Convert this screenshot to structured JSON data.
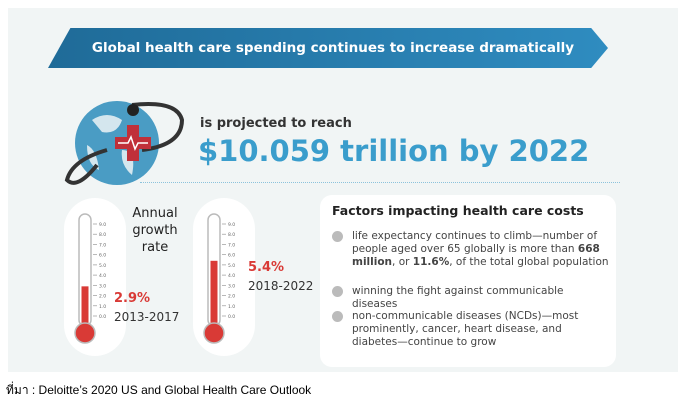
{
  "banner": {
    "title": "Global health care spending continues to increase dramatically"
  },
  "headline": {
    "sub": "is projected to reach",
    "value": "$10.059 trillion by 2022"
  },
  "growth": {
    "title_lines": [
      "Annual",
      "growth",
      "rate"
    ],
    "scale": [
      "9.0",
      "8.0",
      "7.0",
      "6.0",
      "5.0",
      "4.0",
      "3.0",
      "2.0",
      "1.0",
      "0.0"
    ],
    "thermometers": [
      {
        "value": 2.9,
        "pct": "2.9%",
        "period": "2013-2017"
      },
      {
        "value": 5.4,
        "pct": "5.4%",
        "period": "2018-2022"
      }
    ]
  },
  "factors": {
    "title": "Factors impacting health care costs",
    "items": [
      {
        "pre": "life expectancy continues to climb—number of people aged over 65 globally is more than ",
        "b1": "668 million",
        "mid": ", or ",
        "b2": "11.6%",
        "post": ", of the total global population"
      },
      {
        "text": "winning the fight against communicable diseases"
      },
      {
        "text": "non-communicable diseases (NCDs)—most prominently, cancer, heart disease, and diabetes—continue to grow"
      }
    ]
  },
  "footer": "ที่มา : Deloitte’s 2020 US and Global Health Care Outlook",
  "colors": {
    "blue": "#3a9dcc",
    "red": "#d93a36",
    "banner": "#1f6b98"
  }
}
